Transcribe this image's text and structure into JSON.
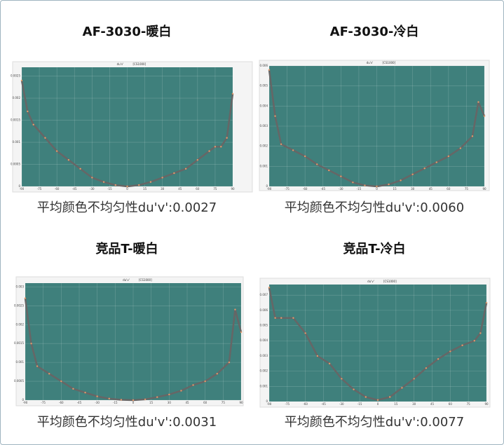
{
  "chart_data": [
    {
      "type": "line",
      "title": "AF-3030-暖白",
      "caption": "平均颜色不均匀性du'v':0.0027",
      "plot_title": "du'v'",
      "instrument": "[CS1000]",
      "x": [
        -90,
        -85,
        -80,
        -70,
        -60,
        -50,
        -40,
        -30,
        -20,
        -10,
        0,
        10,
        20,
        30,
        40,
        50,
        60,
        70,
        75,
        80,
        85,
        90
      ],
      "series": [
        {
          "color": "#666666",
          "values": [
            0.0024,
            0.0017,
            0.0014,
            0.0011,
            0.0008,
            0.0006,
            0.0004,
            0.0002,
            0.0001,
            3e-05,
            0,
            3e-05,
            0.0001,
            0.0002,
            0.0003,
            0.0004,
            0.0006,
            0.0008,
            0.0009,
            0.0009,
            0.0011,
            0.0021
          ]
        }
      ],
      "xlim": [
        -90,
        90
      ],
      "xticks": [
        -90,
        -75,
        -60,
        -45,
        -30,
        -15,
        0,
        15,
        30,
        45,
        60,
        75,
        90
      ],
      "ylim": [
        0,
        0.0027
      ],
      "yticks": [
        0,
        0.0005,
        0.001,
        0.0015,
        0.002,
        0.0025
      ],
      "grid": true
    },
    {
      "type": "line",
      "title": "AF-3030-冷白",
      "caption": "平均颜色不均匀性du'v':0.0060",
      "plot_title": "du'v'",
      "instrument": "[CS1000]",
      "x": [
        -90,
        -85,
        -80,
        -70,
        -60,
        -50,
        -40,
        -30,
        -20,
        -10,
        0,
        10,
        20,
        30,
        40,
        50,
        60,
        70,
        80,
        85,
        90
      ],
      "series": [
        {
          "color": "#666666",
          "values": [
            0.0058,
            0.0035,
            0.0021,
            0.0018,
            0.0015,
            0.0011,
            0.0008,
            0.0005,
            0.0002,
            5e-05,
            0,
            0.0001,
            0.0003,
            0.0006,
            0.0009,
            0.0012,
            0.0015,
            0.0019,
            0.0025,
            0.0042,
            0.0035
          ]
        }
      ],
      "xlim": [
        -90,
        90
      ],
      "xticks": [
        -90,
        -75,
        -60,
        -45,
        -30,
        -15,
        0,
        15,
        30,
        45,
        60,
        75,
        90
      ],
      "ylim": [
        0,
        0.006
      ],
      "yticks": [
        0,
        0.001,
        0.002,
        0.003,
        0.004,
        0.005,
        0.006
      ],
      "grid": true
    },
    {
      "type": "line",
      "title": "竞品T-暖白",
      "caption": "平均颜色不均匀性du'v':0.0031",
      "plot_title": "du'v'",
      "instrument": "[CS1000]",
      "x": [
        -90,
        -85,
        -80,
        -70,
        -60,
        -50,
        -40,
        -30,
        -20,
        -10,
        0,
        10,
        20,
        30,
        40,
        50,
        60,
        70,
        80,
        85,
        90
      ],
      "series": [
        {
          "color": "#666666",
          "values": [
            0.0027,
            0.0015,
            0.0009,
            0.0007,
            0.0005,
            0.0003,
            0.0002,
            0.0001,
            4e-05,
            1e-05,
            0,
            2e-05,
            8e-05,
            0.00015,
            0.00025,
            0.0004,
            0.0005,
            0.0007,
            0.001,
            0.0024,
            0.0018
          ]
        }
      ],
      "xlim": [
        -90,
        90
      ],
      "xticks": [
        -90,
        -75,
        -60,
        -45,
        -30,
        -15,
        0,
        15,
        30,
        45,
        60,
        75,
        90
      ],
      "ylim": [
        0,
        0.0031
      ],
      "yticks": [
        0,
        0.0005,
        0.001,
        0.0015,
        0.002,
        0.0025,
        0.003
      ],
      "grid": true
    },
    {
      "type": "line",
      "title": "竞品T-冷白",
      "caption": "平均颜色不均匀性du'v':0.0077",
      "plot_title": "du'v'",
      "instrument": "[CS1000]",
      "x": [
        -90,
        -85,
        -80,
        -70,
        -60,
        -50,
        -40,
        -30,
        -20,
        -10,
        0,
        10,
        20,
        30,
        40,
        50,
        60,
        70,
        80,
        85,
        90
      ],
      "series": [
        {
          "color": "#666666",
          "values": [
            0.0075,
            0.0055,
            0.0055,
            0.0055,
            0.0045,
            0.003,
            0.0025,
            0.0015,
            0.0008,
            0.0003,
            0.0001,
            0.0003,
            0.0009,
            0.0015,
            0.0022,
            0.0028,
            0.0033,
            0.0037,
            0.004,
            0.0045,
            0.0065
          ]
        }
      ],
      "xlim": [
        -90,
        90
      ],
      "xticks": [
        -90,
        -75,
        -60,
        -45,
        -30,
        -15,
        0,
        15,
        30,
        45,
        60,
        75,
        90
      ],
      "ylim": [
        0,
        0.0077
      ],
      "yticks": [
        0,
        0.001,
        0.002,
        0.003,
        0.004,
        0.005,
        0.006,
        0.007
      ],
      "grid": true
    }
  ]
}
